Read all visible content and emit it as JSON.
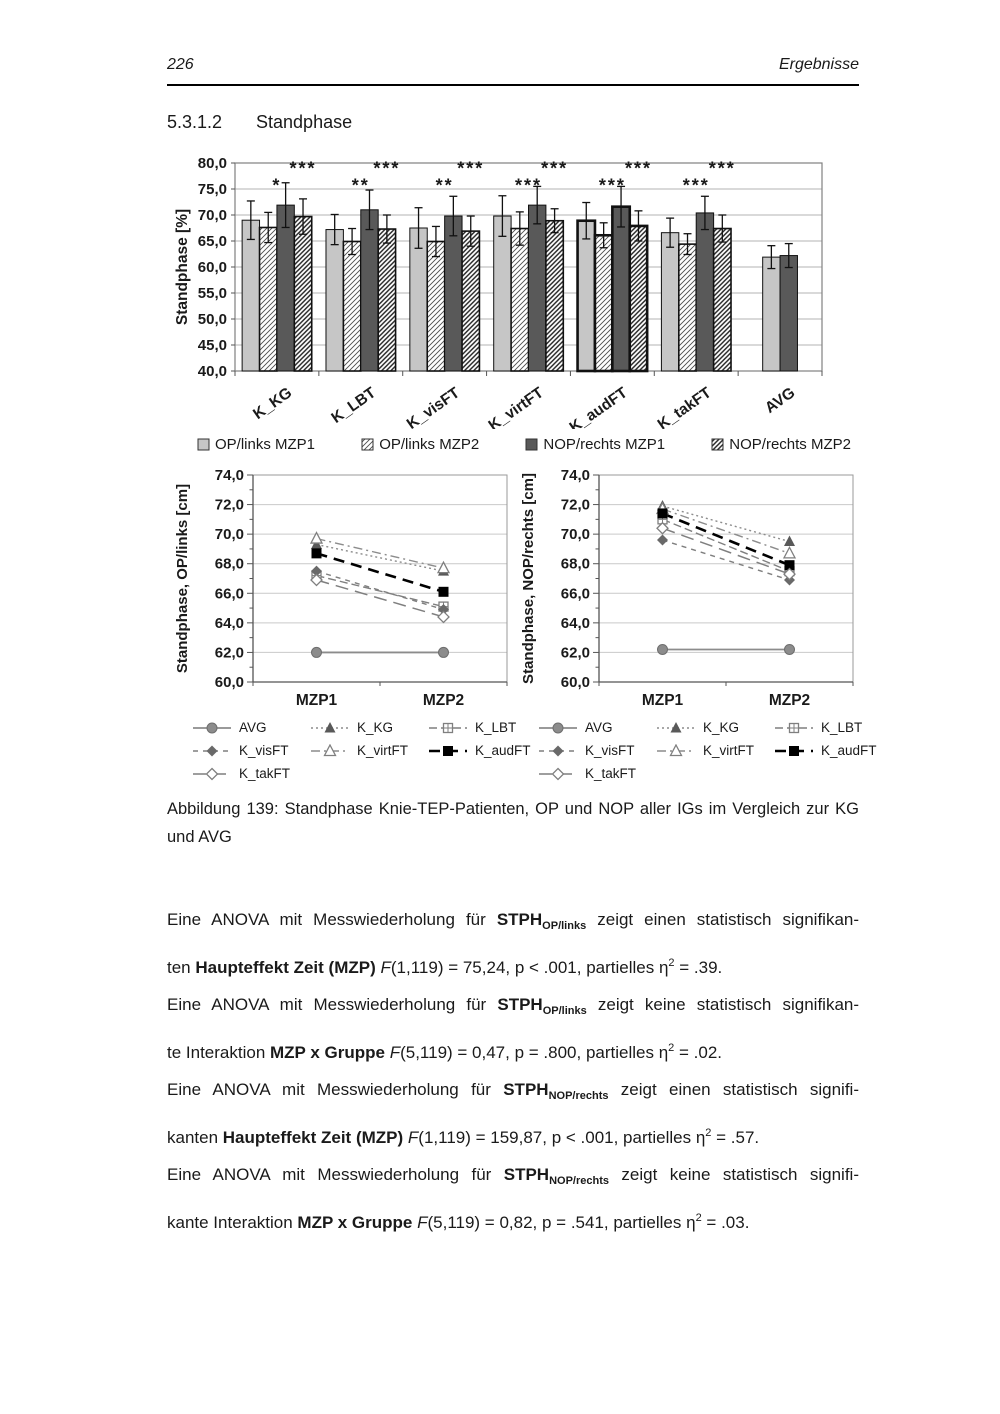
{
  "page": {
    "number": "226",
    "header_right": "Ergebnisse"
  },
  "section": {
    "number": "5.3.1.2",
    "title": "Standphase"
  },
  "chart_data": [
    {
      "type": "bar",
      "ylabel": "Standphase [%]",
      "ylim": [
        40,
        80
      ],
      "ytick_step": 5,
      "grid": true,
      "legend_position": "bottom",
      "categories": [
        "K_KG",
        "K_LBT",
        "K_visFT",
        "K_virtFT",
        "K_audFT",
        "K_takFT",
        "AVG"
      ],
      "series": [
        {
          "name": "OP/links MZP1",
          "style": "light-solid",
          "values": [
            69.0,
            67.2,
            67.5,
            69.8,
            68.9,
            66.6,
            61.9
          ],
          "errors": [
            3.7,
            2.9,
            3.9,
            3.9,
            3.5,
            2.8,
            2.2
          ]
        },
        {
          "name": "OP/links MZP2",
          "style": "light-hatch",
          "values": [
            67.6,
            64.9,
            64.9,
            67.4,
            66.1,
            64.4,
            null
          ],
          "errors": [
            2.9,
            2.5,
            2.9,
            3.2,
            2.4,
            2.0,
            null
          ]
        },
        {
          "name": "NOP/rechts MZP1",
          "style": "dark-solid",
          "values": [
            71.9,
            71.0,
            69.8,
            71.9,
            71.6,
            70.4,
            62.2
          ],
          "errors": [
            4.3,
            3.8,
            3.8,
            3.6,
            3.9,
            3.2,
            2.3
          ]
        },
        {
          "name": "NOP/rechts MZP2",
          "style": "dark-hatch",
          "values": [
            69.7,
            67.3,
            66.9,
            68.9,
            67.9,
            67.4,
            null
          ],
          "errors": [
            3.4,
            2.7,
            2.9,
            2.3,
            2.9,
            2.6,
            null
          ]
        }
      ],
      "significance": [
        {
          "lower": "*",
          "upper": "***"
        },
        {
          "lower": "**",
          "upper": "***"
        },
        {
          "lower": "**",
          "upper": "***"
        },
        {
          "lower": "***",
          "upper": "***"
        },
        {
          "lower": "***",
          "upper": "***"
        },
        {
          "lower": "***",
          "upper": "***"
        },
        null
      ],
      "highlight_category": "K_audFT"
    },
    {
      "type": "line",
      "ylabel": "Standphase, OP/links [cm]",
      "ylim": [
        60,
        74
      ],
      "ytick_step": 2,
      "grid": true,
      "x": [
        "MZP1",
        "MZP2"
      ],
      "series": [
        {
          "name": "AVG",
          "values": [
            62.0,
            62.0
          ]
        },
        {
          "name": "K_KG",
          "values": [
            69.3,
            67.5
          ]
        },
        {
          "name": "K_LBT",
          "values": [
            67.2,
            65.1
          ]
        },
        {
          "name": "K_visFT",
          "values": [
            67.5,
            64.9
          ]
        },
        {
          "name": "K_virtFT",
          "values": [
            69.7,
            67.7
          ]
        },
        {
          "name": "K_audFT",
          "values": [
            68.7,
            66.1
          ]
        },
        {
          "name": "K_takFT",
          "values": [
            66.9,
            64.4
          ]
        }
      ]
    },
    {
      "type": "line",
      "ylabel": "Standphase, NOP/rechts [cm]",
      "ylim": [
        60,
        74
      ],
      "ytick_step": 2,
      "grid": true,
      "x": [
        "MZP1",
        "MZP2"
      ],
      "series": [
        {
          "name": "AVG",
          "values": [
            62.2,
            62.2
          ]
        },
        {
          "name": "K_KG",
          "values": [
            71.9,
            69.5
          ]
        },
        {
          "name": "K_LBT",
          "values": [
            71.0,
            67.5
          ]
        },
        {
          "name": "K_visFT",
          "values": [
            69.6,
            66.9
          ]
        },
        {
          "name": "K_virtFT",
          "values": [
            71.7,
            68.7
          ]
        },
        {
          "name": "K_audFT",
          "values": [
            71.4,
            67.9
          ]
        },
        {
          "name": "K_takFT",
          "values": [
            70.4,
            67.3
          ]
        }
      ]
    }
  ],
  "line_legend_order": [
    "AVG",
    "K_KG",
    "K_LBT",
    "K_visFT",
    "K_virtFT",
    "K_audFT",
    "K_takFT"
  ],
  "colors": {
    "bar_light": "#c6c6c6",
    "bar_dark": "#595959",
    "grid": "#b3b3b3",
    "axis": "#808080",
    "ink": "#1a1a1a"
  },
  "caption": {
    "lines": [
      {
        "just": true,
        "segs": [
          {
            "t": "Abbildung 139: Standphase Knie-TEP-Patienten, OP und NOP aller IGs im Vergleich zur KG"
          }
        ]
      },
      {
        "just": false,
        "segs": [
          {
            "t": "und AVG"
          }
        ]
      }
    ]
  },
  "body": {
    "lines": [
      {
        "just": true,
        "segs": [
          {
            "t": "Eine ANOVA mit Messwiederholung für "
          },
          {
            "t": "STPH",
            "b": true
          },
          {
            "t": "OP/links",
            "b": true,
            "sub": true
          },
          {
            "t": " zeigt einen statistisch signifikan-"
          }
        ]
      },
      {
        "just": false,
        "segs": [
          {
            "t": "ten "
          },
          {
            "t": "Haupteffekt Zeit (MZP)",
            "b": true
          },
          {
            "t": " "
          },
          {
            "t": "F",
            "i": true
          },
          {
            "t": "(1,119) = 75,24, p < .001, partielles η"
          },
          {
            "t": "2",
            "sup": true
          },
          {
            "t": " = .39."
          }
        ]
      },
      {
        "just": true,
        "segs": [
          {
            "t": "Eine ANOVA mit Messwiederholung für "
          },
          {
            "t": "STPH",
            "b": true
          },
          {
            "t": "OP/links",
            "b": true,
            "sub": true
          },
          {
            "t": " zeigt keine statistisch signifikan-"
          }
        ]
      },
      {
        "just": false,
        "segs": [
          {
            "t": "te Interaktion "
          },
          {
            "t": "MZP x Gruppe",
            "b": true
          },
          {
            "t": " "
          },
          {
            "t": "F",
            "i": true
          },
          {
            "t": "(5,119) = 0,47, p = .800, partielles η"
          },
          {
            "t": "2",
            "sup": true
          },
          {
            "t": " = .02."
          }
        ]
      },
      {
        "just": true,
        "segs": [
          {
            "t": "Eine ANOVA mit Messwiederholung für "
          },
          {
            "t": "STPH",
            "b": true
          },
          {
            "t": "NOP/rechts",
            "b": true,
            "sub": true
          },
          {
            "t": " zeigt einen statistisch signifi-"
          }
        ]
      },
      {
        "just": false,
        "segs": [
          {
            "t": "kanten "
          },
          {
            "t": "Haupteffekt Zeit (MZP)",
            "b": true
          },
          {
            "t": " "
          },
          {
            "t": "F",
            "i": true
          },
          {
            "t": "(1,119) = 159,87, p < .001, partielles η"
          },
          {
            "t": "2",
            "sup": true
          },
          {
            "t": " = .57."
          }
        ]
      },
      {
        "just": true,
        "segs": [
          {
            "t": "Eine ANOVA mit Messwiederholung für "
          },
          {
            "t": "STPH",
            "b": true
          },
          {
            "t": "NOP/rechts",
            "b": true,
            "sub": true
          },
          {
            "t": " zeigt keine statistisch signifi-"
          }
        ]
      },
      {
        "just": false,
        "segs": [
          {
            "t": "kante Interaktion "
          },
          {
            "t": "MZP x Gruppe",
            "b": true
          },
          {
            "t": " "
          },
          {
            "t": "F",
            "i": true
          },
          {
            "t": "(5,119) = 0,82, p = .541, partielles η"
          },
          {
            "t": "2",
            "sup": true
          },
          {
            "t": " = .03."
          }
        ]
      }
    ]
  }
}
